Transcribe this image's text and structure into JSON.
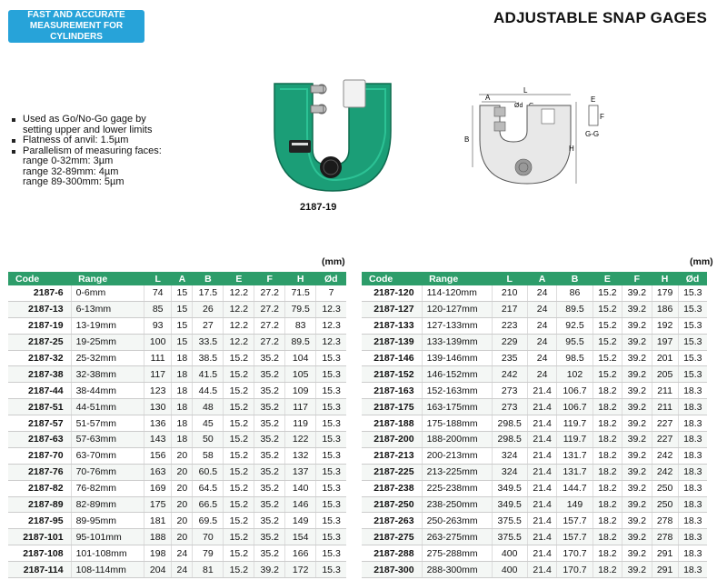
{
  "badge": {
    "line1": "FAST AND ACCURATE",
    "line2": "MEASUREMENT FOR CYLINDERS"
  },
  "title": "ADJUSTABLE SNAP GAGES",
  "features": [
    "Used as Go/No-Go gage by",
    "setting upper and lower limits",
    "Flatness of anvil: 1.5µm",
    "Parallelism of measuring faces:",
    "range 0-32mm: 3µm",
    "range 32-89mm: 4µm",
    "range 89-300mm: 5µm"
  ],
  "product_caption": "2187-19",
  "diagram_labels": {
    "L": "L",
    "A": "A",
    "od": "Ød",
    "G1": "G",
    "G2": "G",
    "B": "B",
    "H": "H",
    "E": "E",
    "F": "F",
    "section": "G-G"
  },
  "unit_label": "(mm)",
  "columns": [
    "Code",
    "Range",
    "L",
    "A",
    "B",
    "E",
    "F",
    "H",
    "Ød"
  ],
  "table_left": [
    [
      "2187-6",
      "0-6mm",
      "74",
      "15",
      "17.5",
      "12.2",
      "27.2",
      "71.5",
      "7"
    ],
    [
      "2187-13",
      "6-13mm",
      "85",
      "15",
      "26",
      "12.2",
      "27.2",
      "79.5",
      "12.3"
    ],
    [
      "2187-19",
      "13-19mm",
      "93",
      "15",
      "27",
      "12.2",
      "27.2",
      "83",
      "12.3"
    ],
    [
      "2187-25",
      "19-25mm",
      "100",
      "15",
      "33.5",
      "12.2",
      "27.2",
      "89.5",
      "12.3"
    ],
    [
      "2187-32",
      "25-32mm",
      "111",
      "18",
      "38.5",
      "15.2",
      "35.2",
      "104",
      "15.3"
    ],
    [
      "2187-38",
      "32-38mm",
      "117",
      "18",
      "41.5",
      "15.2",
      "35.2",
      "105",
      "15.3"
    ],
    [
      "2187-44",
      "38-44mm",
      "123",
      "18",
      "44.5",
      "15.2",
      "35.2",
      "109",
      "15.3"
    ],
    [
      "2187-51",
      "44-51mm",
      "130",
      "18",
      "48",
      "15.2",
      "35.2",
      "117",
      "15.3"
    ],
    [
      "2187-57",
      "51-57mm",
      "136",
      "18",
      "45",
      "15.2",
      "35.2",
      "119",
      "15.3"
    ],
    [
      "2187-63",
      "57-63mm",
      "143",
      "18",
      "50",
      "15.2",
      "35.2",
      "122",
      "15.3"
    ],
    [
      "2187-70",
      "63-70mm",
      "156",
      "20",
      "58",
      "15.2",
      "35.2",
      "132",
      "15.3"
    ],
    [
      "2187-76",
      "70-76mm",
      "163",
      "20",
      "60.5",
      "15.2",
      "35.2",
      "137",
      "15.3"
    ],
    [
      "2187-82",
      "76-82mm",
      "169",
      "20",
      "64.5",
      "15.2",
      "35.2",
      "140",
      "15.3"
    ],
    [
      "2187-89",
      "82-89mm",
      "175",
      "20",
      "66.5",
      "15.2",
      "35.2",
      "146",
      "15.3"
    ],
    [
      "2187-95",
      "89-95mm",
      "181",
      "20",
      "69.5",
      "15.2",
      "35.2",
      "149",
      "15.3"
    ],
    [
      "2187-101",
      "95-101mm",
      "188",
      "20",
      "70",
      "15.2",
      "35.2",
      "154",
      "15.3"
    ],
    [
      "2187-108",
      "101-108mm",
      "198",
      "24",
      "79",
      "15.2",
      "35.2",
      "166",
      "15.3"
    ],
    [
      "2187-114",
      "108-114mm",
      "204",
      "24",
      "81",
      "15.2",
      "39.2",
      "172",
      "15.3"
    ]
  ],
  "table_right": [
    [
      "2187-120",
      "114-120mm",
      "210",
      "24",
      "86",
      "15.2",
      "39.2",
      "179",
      "15.3"
    ],
    [
      "2187-127",
      "120-127mm",
      "217",
      "24",
      "89.5",
      "15.2",
      "39.2",
      "186",
      "15.3"
    ],
    [
      "2187-133",
      "127-133mm",
      "223",
      "24",
      "92.5",
      "15.2",
      "39.2",
      "192",
      "15.3"
    ],
    [
      "2187-139",
      "133-139mm",
      "229",
      "24",
      "95.5",
      "15.2",
      "39.2",
      "197",
      "15.3"
    ],
    [
      "2187-146",
      "139-146mm",
      "235",
      "24",
      "98.5",
      "15.2",
      "39.2",
      "201",
      "15.3"
    ],
    [
      "2187-152",
      "146-152mm",
      "242",
      "24",
      "102",
      "15.2",
      "39.2",
      "205",
      "15.3"
    ],
    [
      "2187-163",
      "152-163mm",
      "273",
      "21.4",
      "106.7",
      "18.2",
      "39.2",
      "211",
      "18.3"
    ],
    [
      "2187-175",
      "163-175mm",
      "273",
      "21.4",
      "106.7",
      "18.2",
      "39.2",
      "211",
      "18.3"
    ],
    [
      "2187-188",
      "175-188mm",
      "298.5",
      "21.4",
      "119.7",
      "18.2",
      "39.2",
      "227",
      "18.3"
    ],
    [
      "2187-200",
      "188-200mm",
      "298.5",
      "21.4",
      "119.7",
      "18.2",
      "39.2",
      "227",
      "18.3"
    ],
    [
      "2187-213",
      "200-213mm",
      "324",
      "21.4",
      "131.7",
      "18.2",
      "39.2",
      "242",
      "18.3"
    ],
    [
      "2187-225",
      "213-225mm",
      "324",
      "21.4",
      "131.7",
      "18.2",
      "39.2",
      "242",
      "18.3"
    ],
    [
      "2187-238",
      "225-238mm",
      "349.5",
      "21.4",
      "144.7",
      "18.2",
      "39.2",
      "250",
      "18.3"
    ],
    [
      "2187-250",
      "238-250mm",
      "349.5",
      "21.4",
      "149",
      "18.2",
      "39.2",
      "250",
      "18.3"
    ],
    [
      "2187-263",
      "250-263mm",
      "375.5",
      "21.4",
      "157.7",
      "18.2",
      "39.2",
      "278",
      "18.3"
    ],
    [
      "2187-275",
      "263-275mm",
      "375.5",
      "21.4",
      "157.7",
      "18.2",
      "39.2",
      "278",
      "18.3"
    ],
    [
      "2187-288",
      "275-288mm",
      "400",
      "21.4",
      "170.7",
      "18.2",
      "39.2",
      "291",
      "18.3"
    ],
    [
      "2187-300",
      "288-300mm",
      "400",
      "21.4",
      "170.7",
      "18.2",
      "39.2",
      "291",
      "18.3"
    ]
  ]
}
